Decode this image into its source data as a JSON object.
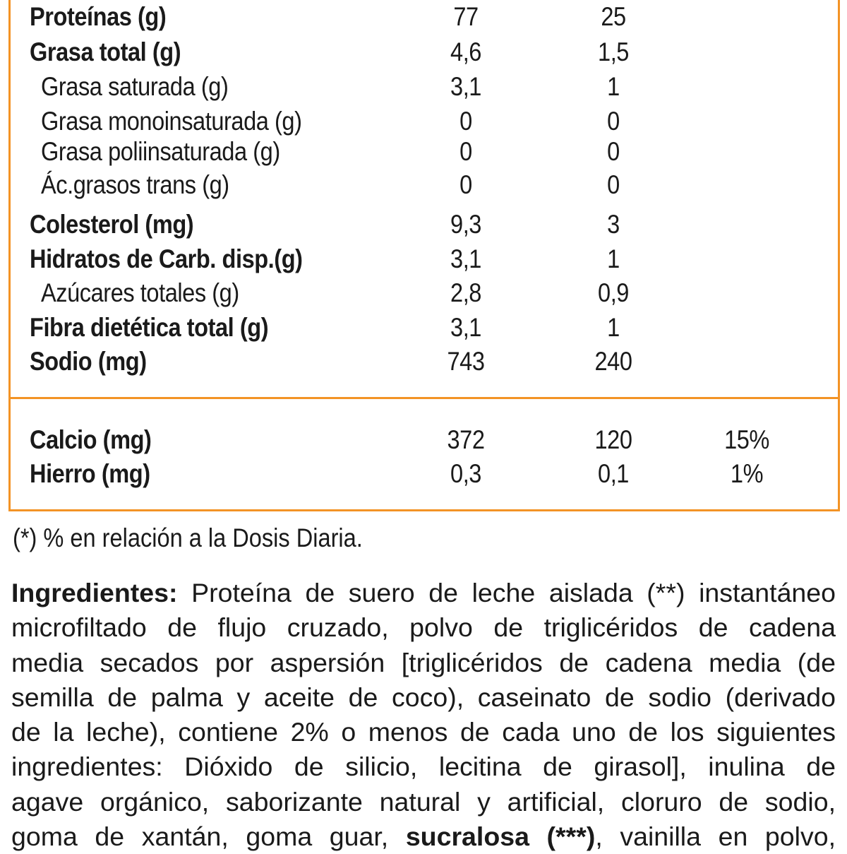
{
  "nutrition_table": {
    "border_color": "#F39325",
    "main_rows": [
      {
        "label": "Proteínas (g)",
        "bold": true,
        "sub": false,
        "per_100": "77",
        "per_serving": "25",
        "dd": ""
      },
      {
        "label": "Grasa total (g)",
        "bold": true,
        "sub": false,
        "per_100": "4,6",
        "per_serving": "1,5",
        "dd": ""
      },
      {
        "label": "Grasa saturada (g)",
        "bold": false,
        "sub": true,
        "per_100": "3,1",
        "per_serving": "1",
        "dd": ""
      },
      {
        "label": "Grasa monoinsaturada (g)",
        "bold": false,
        "sub": true,
        "per_100": "0",
        "per_serving": "0",
        "dd": ""
      },
      {
        "label": "Grasa poliinsaturada (g)",
        "bold": false,
        "sub": true,
        "per_100": "0",
        "per_serving": "0",
        "dd": ""
      },
      {
        "label": "Ác.grasos trans (g)",
        "bold": false,
        "sub": true,
        "per_100": "0",
        "per_serving": "0",
        "dd": ""
      },
      {
        "label": "Colesterol (mg)",
        "bold": true,
        "sub": false,
        "per_100": "9,3",
        "per_serving": "3",
        "dd": ""
      },
      {
        "label": "Hidratos de Carb. disp.(g)",
        "bold": true,
        "sub": false,
        "per_100": "3,1",
        "per_serving": "1",
        "dd": ""
      },
      {
        "label": "Azúcares totales (g)",
        "bold": false,
        "sub": true,
        "per_100": "2,8",
        "per_serving": "0,9",
        "dd": ""
      },
      {
        "label": "Fibra dietética total (g)",
        "bold": true,
        "sub": false,
        "per_100": "3,1",
        "per_serving": "1",
        "dd": ""
      },
      {
        "label": "Sodio (mg)",
        "bold": true,
        "sub": false,
        "per_100": "743",
        "per_serving": "240",
        "dd": ""
      }
    ],
    "mineral_rows": [
      {
        "label": "Calcio (mg)",
        "bold": true,
        "per_100": "372",
        "per_serving": "120",
        "dd": "15%"
      },
      {
        "label": "Hierro (mg)",
        "bold": true,
        "per_100": "0,3",
        "per_serving": "0,1",
        "dd": "1%"
      }
    ]
  },
  "footnote": "(*) % en relación a la Dosis Diaria.",
  "ingredients": {
    "heading": "Ingredientes:",
    "lines": [
      "Proteína de suero de leche aislada (**) instantáneo",
      "microfiltado de flujo cruzado, polvo de triglicéridos de cadena",
      "media secados por aspersión [triglicéridos de cadena media (de",
      "semilla de palma y aceite de coco), caseinato de sodio (derivado",
      "de la leche), contiene 2% o menos de cada uno de los siguientes",
      "ingredientes: Dióxido de silicio, lecitina de girasol], inulina de",
      "agave orgánico, saborizante natural y artificial, cloruro de sodio,"
    ],
    "last_line_pre": "goma de xantán, goma guar,",
    "last_line_bold": "sucralosa (***)",
    "last_line_post": ", vainilla en polvo,"
  }
}
